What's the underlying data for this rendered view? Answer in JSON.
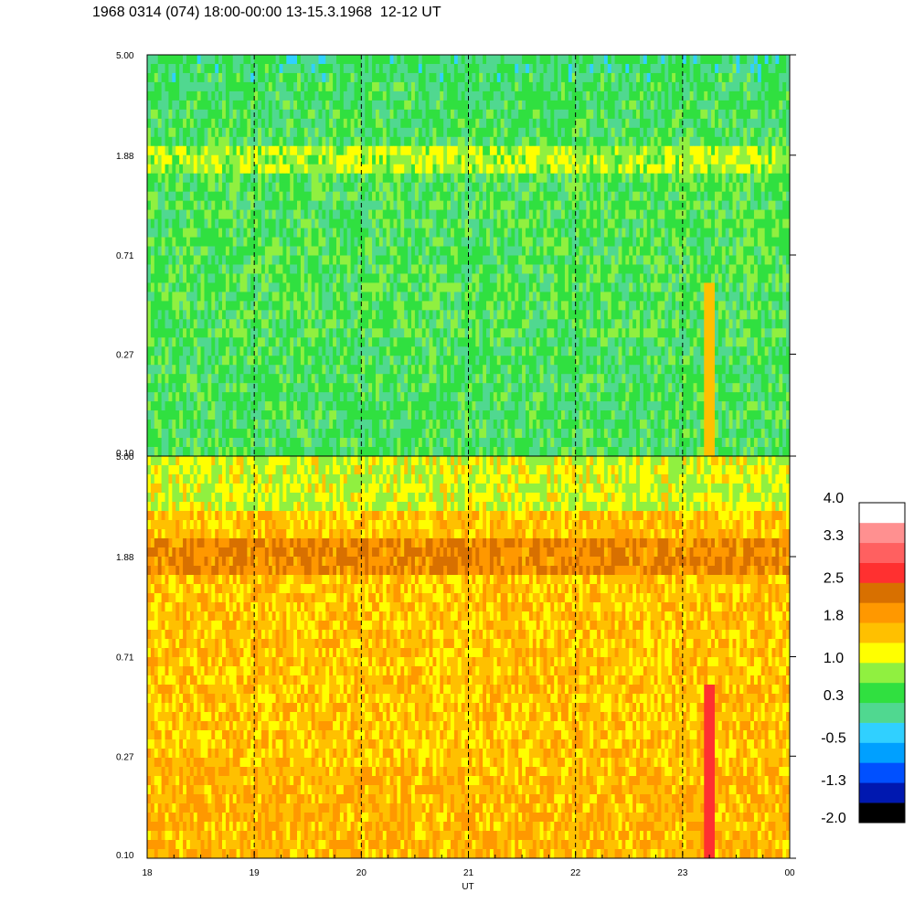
{
  "title": "1968 0314 (074) 18:00-00:00 13-15.3.1968  12-12 UT",
  "chart_data": {
    "type": "heatmap",
    "panels": 2,
    "x": {
      "label": "UT",
      "ticks": [
        "18",
        "19",
        "20",
        "21",
        "22",
        "23",
        "00"
      ],
      "range": [
        18,
        24
      ]
    },
    "y": {
      "scale": "log",
      "range": [
        0.1,
        5.0
      ],
      "ticks": [
        "5.00",
        "1.88",
        "0.71",
        "0.27",
        "0.10"
      ],
      "tick_values": [
        5.0,
        1.88,
        0.71,
        0.27,
        0.1
      ]
    },
    "dashed_hour_lines": [
      19,
      20,
      21,
      22,
      23
    ],
    "colorbar": {
      "ticks": [
        "4.0",
        "3.3",
        "2.5",
        "1.8",
        "1.0",
        "0.3",
        "-0.5",
        "-1.3",
        "-2.0"
      ],
      "range": [
        -2.0,
        4.0
      ],
      "colors": [
        "#000000",
        "#0018b0",
        "#0050ff",
        "#00a0ff",
        "#30d0ff",
        "#50d890",
        "#30e040",
        "#90f040",
        "#ffff00",
        "#ffc000",
        "#ff9800",
        "#d87000",
        "#ff3030",
        "#ff6060",
        "#ff9090",
        "#ffffff"
      ]
    }
  }
}
